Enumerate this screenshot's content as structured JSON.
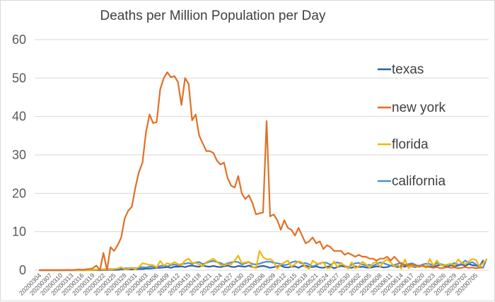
{
  "chart_data": {
    "type": "line",
    "title": "Deaths per Million Population per Day",
    "xlabel": "",
    "ylabel": "",
    "ylim": [
      0,
      60
    ],
    "yticks": [
      0,
      10,
      20,
      30,
      40,
      50,
      60
    ],
    "grid": true,
    "legend_position": "right",
    "start_date": "20200304",
    "num_days": 126,
    "xtick_labels": [
      "20200304",
      "20200307",
      "20200310",
      "20200313",
      "20200316",
      "20200319",
      "20200322",
      "20200325",
      "20200328",
      "20200331",
      "20200403",
      "20200406",
      "20200409",
      "20200412",
      "20200415",
      "20200418",
      "20200421",
      "20200424",
      "20200427",
      "20200430",
      "20200503",
      "20200506",
      "20200509",
      "20200512",
      "20200515",
      "20200518",
      "20200521",
      "20200524",
      "20200527",
      "20200530",
      "20200602",
      "20200605",
      "20200608",
      "20200611",
      "20200614",
      "20200617",
      "20200620",
      "20200623",
      "20200626",
      "20200629",
      "20200702",
      "20200705"
    ],
    "series": [
      {
        "name": "texas",
        "color": "#2e5fa8",
        "values": [
          0,
          0,
          0,
          0,
          0,
          0,
          0,
          0,
          0,
          0,
          0,
          0,
          0,
          0,
          0,
          0,
          0,
          0,
          0,
          0.1,
          0.1,
          0.1,
          0.1,
          0.2,
          0.2,
          0.2,
          0.2,
          0.3,
          0.3,
          0.3,
          0.4,
          0.4,
          0.5,
          0.6,
          0.6,
          0.7,
          0.8,
          0.6,
          0.9,
          0.9,
          1.0,
          0.8,
          1.1,
          1.2,
          1.0,
          0.9,
          1.2,
          1.0,
          0.9,
          1.1,
          0.9,
          0.8,
          1.0,
          1.2,
          0.9,
          0.8,
          1.1,
          1.0,
          0.9,
          1.2,
          0.8,
          0.7,
          1.0,
          1.1,
          0.9,
          0.6,
          0.8,
          1.0,
          1.2,
          0.8,
          0.7,
          0.9,
          1.0,
          0.6,
          1.1,
          1.2,
          0.9,
          0.8,
          1.0,
          0.7,
          0.6,
          0.9,
          1.0,
          0.5,
          0.8,
          1.1,
          0.9,
          0.7,
          0.6,
          1.0,
          0.8,
          0.9,
          0.7,
          0.6,
          0.8,
          1.0,
          0.9,
          0.7,
          0.8,
          1.2,
          1.0,
          0.8,
          1.1,
          0.9,
          1.3,
          1.0,
          0.8,
          1.2,
          1.1,
          0.9,
          1.0,
          0.8,
          1.2,
          1.4,
          1.1,
          0.9,
          1.3,
          1.0,
          1.2,
          1.5,
          1.1,
          1.6,
          1.3,
          1.2,
          0.9,
          2.5
        ]
      },
      {
        "name": "new york",
        "color": "#e07026",
        "values": [
          0,
          0,
          0,
          0,
          0,
          0,
          0,
          0,
          0.1,
          0,
          0.1,
          0.2,
          0.1,
          0.2,
          0.3,
          0.5,
          1.2,
          0,
          4.5,
          0,
          6,
          5,
          6.5,
          8.5,
          13.5,
          15.5,
          16.5,
          21.5,
          25.5,
          28,
          36,
          40.5,
          38.3,
          38.5,
          47,
          50,
          51.5,
          50.2,
          50.5,
          49,
          43,
          50,
          48.5,
          39,
          40.5,
          35,
          33,
          31,
          31,
          30.5,
          28.5,
          27.5,
          28,
          24,
          22,
          21.5,
          24.5,
          20,
          18.5,
          19.5,
          17.5,
          14.5,
          14.8,
          15,
          38.8,
          14,
          14.5,
          13,
          10.5,
          13,
          11,
          10.5,
          9,
          11,
          9,
          7,
          7.5,
          8.5,
          7,
          7.5,
          5.5,
          6.5,
          6,
          5,
          5,
          5,
          4,
          4.5,
          4,
          3.5,
          4,
          3.5,
          3.5,
          3,
          3,
          2.5,
          3,
          3,
          3.5,
          2.5,
          3.5,
          2.5,
          1.5,
          1.5,
          1.2,
          1.5,
          1.2,
          1,
          1.2,
          0.9,
          0.8,
          0.6,
          0.8,
          0.5,
          0.6,
          0.8,
          0.6,
          0.7,
          0.5,
          0.6,
          0.8,
          0.6,
          0.7,
          0.5,
          0.6,
          0.7
        ]
      },
      {
        "name": "florida",
        "color": "#f2b705",
        "values": [
          0,
          0,
          0,
          0,
          0,
          0,
          0,
          0,
          0,
          0,
          0,
          0,
          0,
          0,
          0,
          0.1,
          0.1,
          0.2,
          0.1,
          0.3,
          0.2,
          0.3,
          0.4,
          0.8,
          0.2,
          0.3,
          0.6,
          0.3,
          0.8,
          1.8,
          1.6,
          1.4,
          1.3,
          0.7,
          2.4,
          1.2,
          1.8,
          1.5,
          2.1,
          1.6,
          1.3,
          2.5,
          3.0,
          1.9,
          1.9,
          1.5,
          1.0,
          2.1,
          2.5,
          3.0,
          2.2,
          1.4,
          1.2,
          1.6,
          1.5,
          2.5,
          3.8,
          1.8,
          2.0,
          2.2,
          0.9,
          0.5,
          5.0,
          3.4,
          2.8,
          2.9,
          2.2,
          0.4,
          1.5,
          2.0,
          2.5,
          0.9,
          1.6,
          2.3,
          2.0,
          0.8,
          0.4,
          2.5,
          1.8,
          1.6,
          2.1,
          0.5,
          0.6,
          2.3,
          0.8,
          1.9,
          1.2,
          0.4,
          2.1,
          0.5,
          1.0,
          2.2,
          1.5,
          0.6,
          1.8,
          2.2,
          0.9,
          2.2,
          2.8,
          2.0,
          0.9,
          1.3,
          0.4,
          2.8,
          0.5,
          1.2,
          1.0,
          0.8,
          1.1,
          0.6,
          2.9,
          1.2,
          2.5,
          1.4,
          1.2,
          1.5,
          1.7,
          1.2,
          2.8,
          1.9,
          1.5,
          2.3,
          2.9,
          2.7,
          0.9,
          1.8,
          2.7
        ]
      },
      {
        "name": "california",
        "color": "#4a8fd6",
        "values": [
          0,
          0,
          0,
          0,
          0,
          0,
          0,
          0,
          0,
          0,
          0,
          0,
          0,
          0,
          0.1,
          0.1,
          0.1,
          0.2,
          0.2,
          0.3,
          0.3,
          0.3,
          0.4,
          0.4,
          0.5,
          0.5,
          0.6,
          0.5,
          0.7,
          0.8,
          0.7,
          0.9,
          1.0,
          0.8,
          1.1,
          1.2,
          1.0,
          1.3,
          1.5,
          1.2,
          1.6,
          1.7,
          1.9,
          1.6,
          2.0,
          2.1,
          1.6,
          1.9,
          2.2,
          2.4,
          2.1,
          1.9,
          1.4,
          1.8,
          2.0,
          2.2,
          2.1,
          1.5,
          1.8,
          2.1,
          1.6,
          1.5,
          1.7,
          2.0,
          2.2,
          2.2,
          1.9,
          1.8,
          1.6,
          1.3,
          1.5,
          2.0,
          2.3,
          2.1,
          1.7,
          1.9,
          1.5,
          1.0,
          1.3,
          1.8,
          2.0,
          1.9,
          1.4,
          1.9,
          2.0,
          1.7,
          1.2,
          0.8,
          1.4,
          1.8,
          1.9,
          1.5,
          1.2,
          1.4,
          1.1,
          1.6,
          2.0,
          1.8,
          1.5,
          1.2,
          1.3,
          1.7,
          1.9,
          1.3,
          1.6,
          1.8,
          1.4,
          1.0,
          1.5,
          1.7,
          1.6,
          1.2,
          1.9,
          1.6,
          1.4,
          1.2,
          1.5,
          1.9,
          1.4,
          1.7,
          2.5,
          1.8,
          2.1,
          1.5,
          0.9,
          0.6,
          2.8
        ]
      }
    ]
  }
}
